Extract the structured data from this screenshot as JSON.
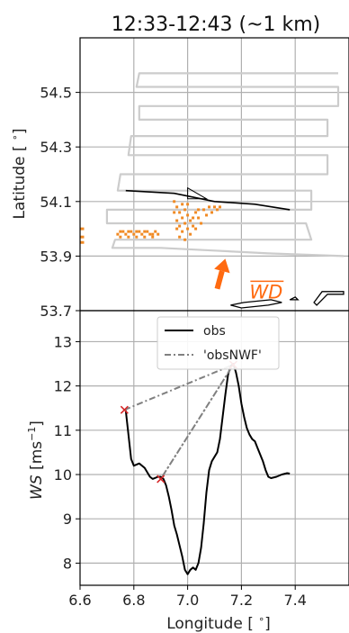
{
  "chart_data": [
    {
      "type": "map",
      "title": "12:33-12:43 (~1 km)",
      "xlabel": "",
      "ylabel": "Latitude [$^\\circ$]",
      "ylabel_text": "Latitude [ ",
      "ylabel_unit_close": "]",
      "degree": "∘",
      "xlim": [
        6.6,
        7.6
      ],
      "ylim": [
        53.7,
        54.7
      ],
      "yticks": [
        "53.7",
        "53.9",
        "54.1",
        "54.3",
        "54.5"
      ],
      "ytick_values": [
        53.7,
        53.9,
        54.1,
        54.3,
        54.5
      ],
      "xtick_values": [
        6.6,
        6.8,
        7.0,
        7.2,
        7.4
      ],
      "grid": true,
      "annotation": "WD",
      "colors": {
        "track": "#cccccc",
        "obs": "#000000",
        "dots": "#f08a24",
        "arrow": "#ff6a10"
      },
      "flight_track": [
        [
          7.56,
          54.57
        ],
        [
          6.82,
          54.57
        ],
        [
          6.81,
          54.52
        ],
        [
          7.56,
          54.52
        ],
        [
          7.56,
          54.45
        ],
        [
          6.82,
          54.45
        ],
        [
          6.82,
          54.4
        ],
        [
          7.52,
          54.4
        ],
        [
          7.52,
          54.34
        ],
        [
          6.79,
          54.34
        ],
        [
          6.78,
          54.27
        ],
        [
          7.52,
          54.27
        ],
        [
          7.52,
          54.2
        ],
        [
          6.75,
          54.2
        ],
        [
          6.74,
          54.14
        ],
        [
          7.46,
          54.14
        ],
        [
          7.46,
          54.07
        ],
        [
          6.7,
          54.07
        ],
        [
          6.7,
          54.02
        ],
        [
          7.44,
          54.02
        ],
        [
          7.46,
          53.96
        ],
        [
          6.73,
          53.96
        ],
        [
          6.72,
          53.93
        ],
        [
          6.9,
          53.93
        ],
        [
          7.1,
          53.92
        ],
        [
          7.3,
          53.91
        ],
        [
          7.58,
          53.9
        ]
      ],
      "obs_line": [
        [
          6.77,
          54.14
        ],
        [
          6.95,
          54.13
        ],
        [
          7.1,
          54.1
        ],
        [
          7.25,
          54.09
        ],
        [
          7.38,
          54.07
        ]
      ],
      "wedge": [
        [
          7.0,
          54.15
        ],
        [
          7.07,
          54.11
        ],
        [
          7.0,
          54.11
        ]
      ],
      "coast": [
        [
          [
            7.16,
            53.72
          ],
          [
            7.21,
            53.73
          ],
          [
            7.31,
            53.74
          ],
          [
            7.35,
            53.73
          ],
          [
            7.3,
            53.72
          ],
          [
            7.2,
            53.71
          ],
          [
            7.16,
            53.72
          ]
        ],
        [
          [
            7.47,
            53.73
          ],
          [
            7.5,
            53.77
          ],
          [
            7.58,
            53.77
          ],
          [
            7.58,
            53.76
          ],
          [
            7.52,
            53.76
          ],
          [
            7.48,
            53.72
          ],
          [
            7.47,
            53.73
          ]
        ],
        [
          [
            7.38,
            53.74
          ],
          [
            7.41,
            53.74
          ],
          [
            7.4,
            53.75
          ],
          [
            7.38,
            53.74
          ]
        ]
      ],
      "obs_dots": [
        [
          6.6,
          54.0
        ],
        [
          6.61,
          54.0
        ],
        [
          6.6,
          53.97
        ],
        [
          6.61,
          53.97
        ],
        [
          6.6,
          53.95
        ],
        [
          6.61,
          53.95
        ],
        [
          6.74,
          53.98
        ],
        [
          6.75,
          53.97
        ],
        [
          6.76,
          53.99
        ],
        [
          6.77,
          53.98
        ],
        [
          6.78,
          53.97
        ],
        [
          6.79,
          53.99
        ],
        [
          6.8,
          53.98
        ],
        [
          6.81,
          53.97
        ],
        [
          6.82,
          53.99
        ],
        [
          6.83,
          53.98
        ],
        [
          6.84,
          53.97
        ],
        [
          6.85,
          53.99
        ],
        [
          6.86,
          53.98
        ],
        [
          6.87,
          53.97
        ],
        [
          6.88,
          53.99
        ],
        [
          6.89,
          53.98
        ],
        [
          6.75,
          53.99
        ],
        [
          6.78,
          53.99
        ],
        [
          6.81,
          53.99
        ],
        [
          6.84,
          53.99
        ],
        [
          6.87,
          53.98
        ],
        [
          6.95,
          54.1
        ],
        [
          6.96,
          54.08
        ],
        [
          6.97,
          54.06
        ],
        [
          6.98,
          54.04
        ],
        [
          6.99,
          54.02
        ],
        [
          7.0,
          54.0
        ],
        [
          7.01,
          53.98
        ],
        [
          6.96,
          54.03
        ],
        [
          6.97,
          54.01
        ],
        [
          6.98,
          53.99
        ],
        [
          6.99,
          54.07
        ],
        [
          7.0,
          54.05
        ],
        [
          7.01,
          54.03
        ],
        [
          7.02,
          54.01
        ],
        [
          7.03,
          54.06
        ],
        [
          7.04,
          54.04
        ],
        [
          7.05,
          54.02
        ],
        [
          7.06,
          54.07
        ],
        [
          7.07,
          54.05
        ],
        [
          7.08,
          54.08
        ],
        [
          7.09,
          54.06
        ],
        [
          7.1,
          54.08
        ],
        [
          7.11,
          54.07
        ],
        [
          7.12,
          54.08
        ],
        [
          6.95,
          54.06
        ],
        [
          6.96,
          54.0
        ],
        [
          6.98,
          54.09
        ],
        [
          7.0,
          54.09
        ],
        [
          7.02,
          54.04
        ],
        [
          7.04,
          54.07
        ],
        [
          6.97,
          53.97
        ],
        [
          6.99,
          53.96
        ],
        [
          7.03,
          54.0
        ]
      ],
      "wind_arrow": {
        "from": [
          7.11,
          53.78
        ],
        "to": [
          7.14,
          53.89
        ]
      }
    },
    {
      "type": "line",
      "title": "",
      "xlabel": "Longitude [$^\\circ$]",
      "xlabel_text": "Longitude [ ",
      "xlabel_unit_close": "]",
      "degree": "∘",
      "ylabel": "$WS$ [ms$^{-1}$]",
      "ylabel_var": "WS",
      "ylabel_unit_open": " [ms",
      "ylabel_exp": "−1",
      "ylabel_unit_close": "]",
      "xlim": [
        6.6,
        7.6
      ],
      "ylim": [
        7.5,
        13.7
      ],
      "xticks": [
        "6.6",
        "6.8",
        "7.0",
        "7.2",
        "7.4"
      ],
      "xtick_values": [
        6.6,
        6.8,
        7.0,
        7.2,
        7.4
      ],
      "yticks": [
        "8",
        "9",
        "10",
        "11",
        "12",
        "13"
      ],
      "ytick_values": [
        8,
        9,
        10,
        11,
        12,
        13
      ],
      "grid": true,
      "legend_position": "top-center",
      "series": [
        {
          "name": "obs",
          "color": "#000000",
          "style": "solid",
          "x": [
            6.77,
            6.78,
            6.79,
            6.8,
            6.82,
            6.84,
            6.86,
            6.87,
            6.89,
            6.9,
            6.91,
            6.92,
            6.93,
            6.94,
            6.95,
            6.96,
            6.97,
            6.98,
            6.99,
            7.0,
            7.01,
            7.02,
            7.03,
            7.04,
            7.05,
            7.06,
            7.07,
            7.08,
            7.09,
            7.1,
            7.11,
            7.12,
            7.13,
            7.14,
            7.15,
            7.16,
            7.17,
            7.18,
            7.19,
            7.2,
            7.21,
            7.22,
            7.23,
            7.24,
            7.25,
            7.26,
            7.27,
            7.28,
            7.29,
            7.3,
            7.31,
            7.33,
            7.35,
            7.37,
            7.38
          ],
          "y": [
            11.45,
            10.9,
            10.35,
            10.2,
            10.25,
            10.15,
            9.95,
            9.9,
            9.95,
            9.95,
            9.9,
            9.75,
            9.5,
            9.2,
            8.85,
            8.65,
            8.4,
            8.15,
            7.85,
            7.75,
            7.85,
            7.9,
            7.85,
            8.0,
            8.35,
            8.9,
            9.6,
            10.1,
            10.3,
            10.4,
            10.5,
            10.8,
            11.3,
            11.8,
            12.25,
            12.45,
            12.5,
            12.3,
            12.0,
            11.6,
            11.3,
            11.05,
            10.9,
            10.8,
            10.75,
            10.6,
            10.45,
            10.3,
            10.1,
            9.95,
            9.92,
            9.95,
            10.0,
            10.03,
            10.02
          ]
        },
        {
          "name": "'obsNWF'",
          "color": "#808080",
          "style": "dashdot",
          "x": [
            6.765,
            7.17,
            6.9,
            7.17
          ],
          "y": [
            11.46,
            12.48,
            9.9,
            12.48
          ]
        }
      ],
      "markers": {
        "color": "#d62728",
        "points": [
          [
            6.765,
            11.46
          ],
          [
            6.9,
            9.9
          ],
          [
            7.17,
            12.48
          ]
        ]
      }
    }
  ]
}
